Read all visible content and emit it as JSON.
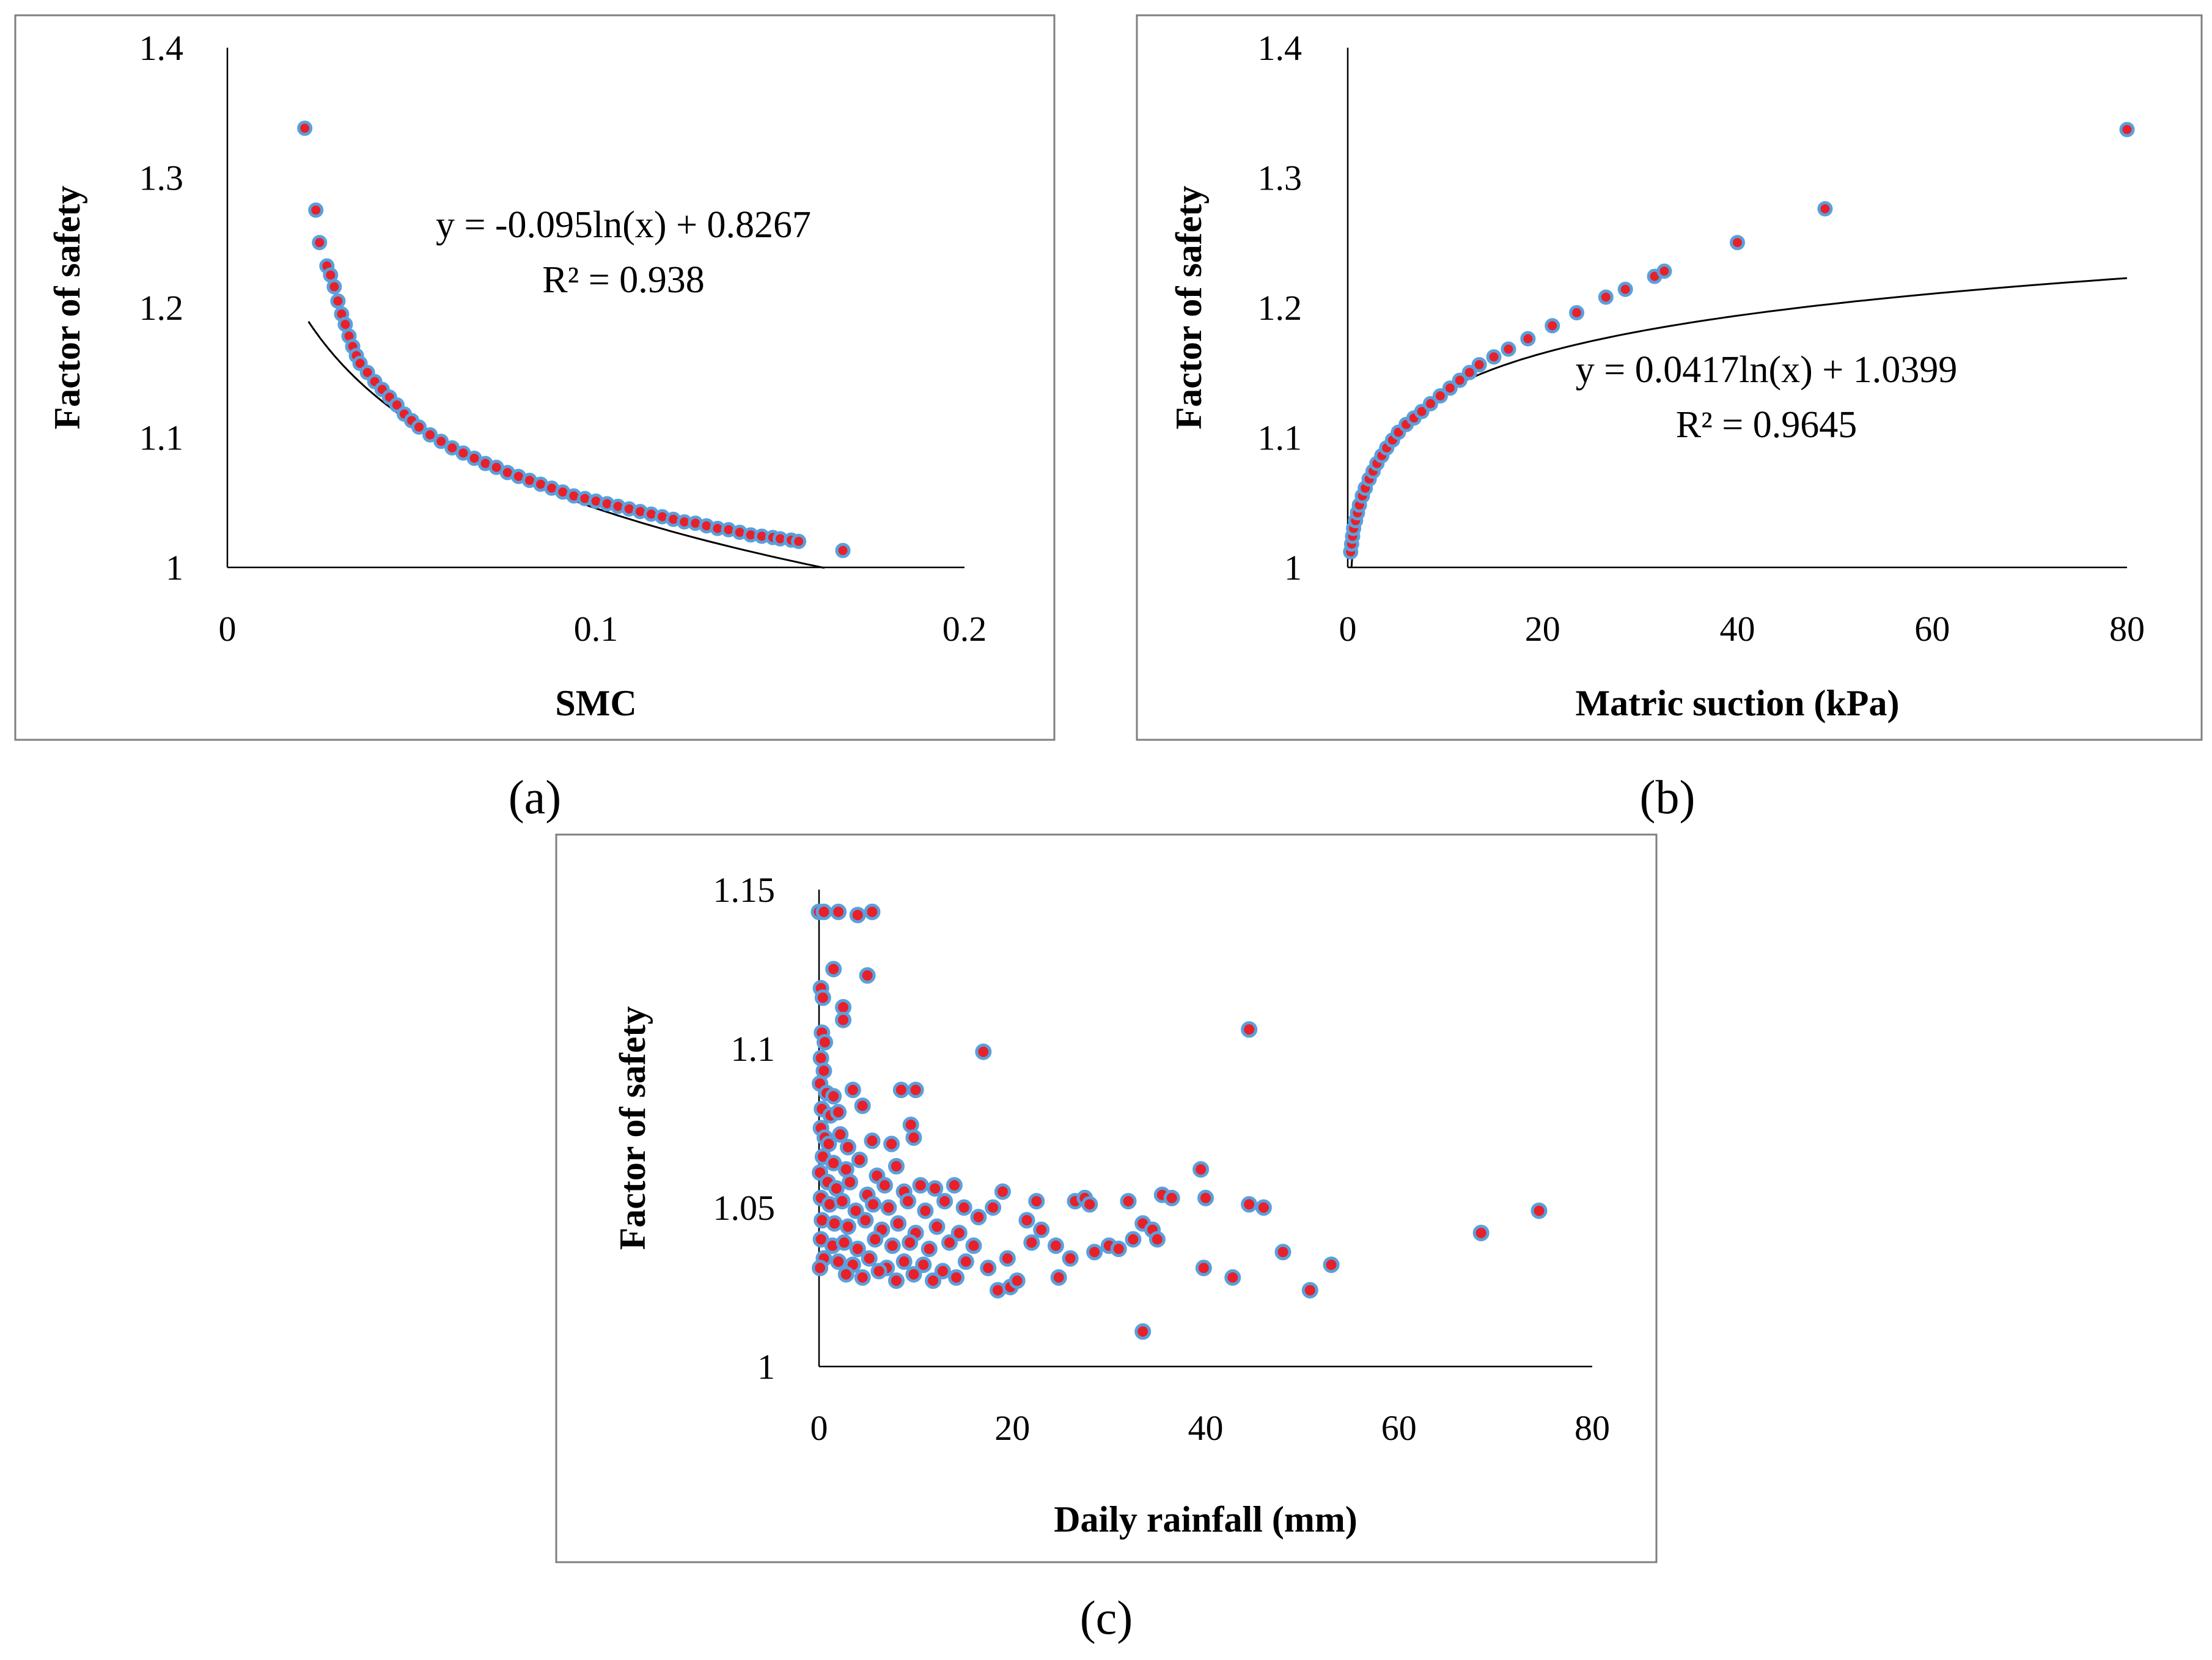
{
  "colors": {
    "marker_fill": "#e8202a",
    "marker_edge": "#5aa0dc",
    "trendline": "#000000",
    "frame": "#7f7f7f"
  },
  "chart_data": [
    {
      "panel_label": "(a)",
      "type": "scatter",
      "xlabel": "SMC",
      "ylabel": "Factor of safety",
      "xlim": [
        0,
        0.2
      ],
      "ylim": [
        1,
        1.4
      ],
      "xticks": [
        "0",
        "0.1",
        "0.2"
      ],
      "yticks": [
        "1",
        "1.1",
        "1.2",
        "1.3",
        "1.4"
      ],
      "trendline": {
        "type": "log",
        "a": -0.095,
        "b": 0.8267,
        "x_range": [
          0.022,
          0.162
        ]
      },
      "equation": "y = -0.095ln(x) + 0.8267",
      "r_squared": "R² = 0.938",
      "points": [
        [
          0.021,
          1.338
        ],
        [
          0.024,
          1.275
        ],
        [
          0.025,
          1.25
        ],
        [
          0.027,
          1.232
        ],
        [
          0.028,
          1.225
        ],
        [
          0.029,
          1.216
        ],
        [
          0.03,
          1.205
        ],
        [
          0.031,
          1.195
        ],
        [
          0.032,
          1.187
        ],
        [
          0.033,
          1.178
        ],
        [
          0.034,
          1.17
        ],
        [
          0.035,
          1.163
        ],
        [
          0.036,
          1.157
        ],
        [
          0.038,
          1.15
        ],
        [
          0.04,
          1.143
        ],
        [
          0.042,
          1.137
        ],
        [
          0.044,
          1.131
        ],
        [
          0.046,
          1.125
        ],
        [
          0.048,
          1.118
        ],
        [
          0.05,
          1.113
        ],
        [
          0.052,
          1.108
        ],
        [
          0.055,
          1.102
        ],
        [
          0.058,
          1.097
        ],
        [
          0.061,
          1.092
        ],
        [
          0.064,
          1.088
        ],
        [
          0.067,
          1.084
        ],
        [
          0.07,
          1.08
        ],
        [
          0.073,
          1.077
        ],
        [
          0.076,
          1.073
        ],
        [
          0.079,
          1.07
        ],
        [
          0.082,
          1.067
        ],
        [
          0.085,
          1.064
        ],
        [
          0.088,
          1.061
        ],
        [
          0.091,
          1.058
        ],
        [
          0.094,
          1.055
        ],
        [
          0.097,
          1.053
        ],
        [
          0.1,
          1.051
        ],
        [
          0.103,
          1.049
        ],
        [
          0.106,
          1.047
        ],
        [
          0.109,
          1.045
        ],
        [
          0.112,
          1.043
        ],
        [
          0.115,
          1.041
        ],
        [
          0.118,
          1.039
        ],
        [
          0.121,
          1.037
        ],
        [
          0.124,
          1.035
        ],
        [
          0.127,
          1.034
        ],
        [
          0.13,
          1.032
        ],
        [
          0.133,
          1.03
        ],
        [
          0.136,
          1.029
        ],
        [
          0.139,
          1.027
        ],
        [
          0.142,
          1.025
        ],
        [
          0.145,
          1.024
        ],
        [
          0.148,
          1.023
        ],
        [
          0.15,
          1.022
        ],
        [
          0.153,
          1.021
        ],
        [
          0.155,
          1.02
        ],
        [
          0.167,
          1.013
        ]
      ]
    },
    {
      "panel_label": "(b)",
      "type": "scatter",
      "xlabel": "Matric suction (kPa)",
      "ylabel": "Factor of safety",
      "xlim": [
        0,
        80
      ],
      "ylim": [
        1,
        1.4
      ],
      "xticks": [
        "0",
        "20",
        "40",
        "60",
        "80"
      ],
      "yticks": [
        "1",
        "1.1",
        "1.2",
        "1.3",
        "1.4"
      ],
      "trendline": {
        "type": "log",
        "a": 0.0417,
        "b": 1.0399,
        "x_range": [
          0.38,
          80
        ]
      },
      "equation": "y = 0.0417ln(x) + 1.0399",
      "r_squared": "R² = 0.9645",
      "points": [
        [
          0.3,
          1.012
        ],
        [
          0.4,
          1.018
        ],
        [
          0.5,
          1.024
        ],
        [
          0.6,
          1.03
        ],
        [
          0.8,
          1.036
        ],
        [
          1.0,
          1.042
        ],
        [
          1.2,
          1.048
        ],
        [
          1.5,
          1.055
        ],
        [
          1.8,
          1.061
        ],
        [
          2.2,
          1.068
        ],
        [
          2.6,
          1.074
        ],
        [
          3.0,
          1.08
        ],
        [
          3.5,
          1.086
        ],
        [
          4.0,
          1.092
        ],
        [
          4.6,
          1.098
        ],
        [
          5.2,
          1.104
        ],
        [
          6.0,
          1.11
        ],
        [
          6.8,
          1.115
        ],
        [
          7.6,
          1.12
        ],
        [
          8.5,
          1.126
        ],
        [
          9.5,
          1.132
        ],
        [
          10.5,
          1.138
        ],
        [
          11.5,
          1.144
        ],
        [
          12.5,
          1.15
        ],
        [
          13.5,
          1.156
        ],
        [
          15.0,
          1.162
        ],
        [
          16.5,
          1.168
        ],
        [
          18.5,
          1.176
        ],
        [
          21.0,
          1.186
        ],
        [
          23.5,
          1.196
        ],
        [
          26.5,
          1.208
        ],
        [
          28.5,
          1.214
        ],
        [
          31.5,
          1.224
        ],
        [
          32.5,
          1.228
        ],
        [
          40.0,
          1.25
        ],
        [
          49.0,
          1.276
        ],
        [
          80.0,
          1.337
        ]
      ]
    },
    {
      "panel_label": "(c)",
      "type": "scatter",
      "xlabel": "Daily rainfall (mm)",
      "ylabel": "Factor of safety",
      "xlim": [
        0,
        80
      ],
      "ylim": [
        1,
        1.15
      ],
      "xticks": [
        "0",
        "20",
        "40",
        "60",
        "80"
      ],
      "yticks": [
        "1",
        "1.05",
        "1.1",
        "1.15"
      ],
      "points": [
        [
          0,
          1.143
        ],
        [
          0.5,
          1.143
        ],
        [
          2,
          1.143
        ],
        [
          4,
          1.142
        ],
        [
          5.5,
          1.143
        ],
        [
          1.5,
          1.125
        ],
        [
          5,
          1.123
        ],
        [
          0.2,
          1.119
        ],
        [
          0.4,
          1.116
        ],
        [
          2.5,
          1.113
        ],
        [
          2.5,
          1.109
        ],
        [
          0.3,
          1.105
        ],
        [
          0.6,
          1.102
        ],
        [
          0.2,
          1.097
        ],
        [
          0.5,
          1.093
        ],
        [
          0.1,
          1.089
        ],
        [
          0.8,
          1.086
        ],
        [
          1.5,
          1.085
        ],
        [
          3.5,
          1.087
        ],
        [
          8.5,
          1.087
        ],
        [
          10,
          1.087
        ],
        [
          17,
          1.099
        ],
        [
          44.5,
          1.106
        ],
        [
          0.3,
          1.081
        ],
        [
          1.2,
          1.079
        ],
        [
          2.0,
          1.08
        ],
        [
          4.5,
          1.082
        ],
        [
          9.5,
          1.076
        ],
        [
          0.2,
          1.075
        ],
        [
          0.6,
          1.072
        ],
        [
          1.0,
          1.07
        ],
        [
          2.2,
          1.073
        ],
        [
          3.0,
          1.069
        ],
        [
          5.5,
          1.071
        ],
        [
          7.5,
          1.07
        ],
        [
          9.8,
          1.072
        ],
        [
          0.4,
          1.066
        ],
        [
          1.5,
          1.064
        ],
        [
          2.8,
          1.062
        ],
        [
          4.2,
          1.065
        ],
        [
          6.0,
          1.06
        ],
        [
          8.0,
          1.063
        ],
        [
          0.1,
          1.061
        ],
        [
          0.9,
          1.058
        ],
        [
          1.8,
          1.056
        ],
        [
          3.2,
          1.058
        ],
        [
          5.0,
          1.054
        ],
        [
          6.8,
          1.057
        ],
        [
          8.8,
          1.055
        ],
        [
          10.5,
          1.057
        ],
        [
          12.0,
          1.056
        ],
        [
          14.0,
          1.057
        ],
        [
          19.0,
          1.055
        ],
        [
          0.2,
          1.053
        ],
        [
          1.1,
          1.051
        ],
        [
          2.4,
          1.052
        ],
        [
          3.8,
          1.049
        ],
        [
          5.6,
          1.051
        ],
        [
          7.2,
          1.05
        ],
        [
          9.2,
          1.052
        ],
        [
          11.0,
          1.049
        ],
        [
          13.0,
          1.052
        ],
        [
          15.0,
          1.05
        ],
        [
          16.5,
          1.047
        ],
        [
          18.0,
          1.05
        ],
        [
          22.5,
          1.052
        ],
        [
          26.5,
          1.052
        ],
        [
          27.5,
          1.053
        ],
        [
          28.0,
          1.051
        ],
        [
          32.0,
          1.052
        ],
        [
          35.5,
          1.054
        ],
        [
          36.5,
          1.053
        ],
        [
          39.5,
          1.062
        ],
        [
          40.0,
          1.053
        ],
        [
          44.5,
          1.051
        ],
        [
          46.0,
          1.05
        ],
        [
          0.3,
          1.046
        ],
        [
          1.6,
          1.045
        ],
        [
          3.0,
          1.044
        ],
        [
          4.8,
          1.046
        ],
        [
          6.5,
          1.043
        ],
        [
          8.2,
          1.045
        ],
        [
          10.0,
          1.042
        ],
        [
          12.2,
          1.044
        ],
        [
          14.5,
          1.042
        ],
        [
          21.5,
          1.046
        ],
        [
          23.0,
          1.043
        ],
        [
          33.5,
          1.045
        ],
        [
          0.2,
          1.04
        ],
        [
          1.4,
          1.038
        ],
        [
          2.6,
          1.039
        ],
        [
          4.0,
          1.037
        ],
        [
          5.8,
          1.04
        ],
        [
          7.6,
          1.038
        ],
        [
          9.4,
          1.039
        ],
        [
          11.4,
          1.037
        ],
        [
          13.5,
          1.039
        ],
        [
          16.0,
          1.038
        ],
        [
          22.0,
          1.039
        ],
        [
          24.5,
          1.038
        ],
        [
          30.0,
          1.038
        ],
        [
          32.5,
          1.04
        ],
        [
          34.5,
          1.043
        ],
        [
          35.0,
          1.04
        ],
        [
          0.5,
          1.034
        ],
        [
          2.0,
          1.033
        ],
        [
          3.5,
          1.032
        ],
        [
          5.2,
          1.034
        ],
        [
          7.0,
          1.031
        ],
        [
          8.8,
          1.033
        ],
        [
          10.8,
          1.032
        ],
        [
          12.8,
          1.03
        ],
        [
          15.2,
          1.033
        ],
        [
          17.5,
          1.031
        ],
        [
          19.5,
          1.034
        ],
        [
          26.0,
          1.034
        ],
        [
          28.5,
          1.036
        ],
        [
          31.0,
          1.037
        ],
        [
          48.0,
          1.036
        ],
        [
          68.5,
          1.042
        ],
        [
          74.5,
          1.049
        ],
        [
          0.1,
          1.031
        ],
        [
          2.8,
          1.029
        ],
        [
          4.5,
          1.028
        ],
        [
          6.2,
          1.03
        ],
        [
          8.0,
          1.027
        ],
        [
          9.8,
          1.029
        ],
        [
          11.8,
          1.027
        ],
        [
          14.2,
          1.028
        ],
        [
          18.5,
          1.024
        ],
        [
          19.8,
          1.025
        ],
        [
          20.5,
          1.027
        ],
        [
          24.8,
          1.028
        ],
        [
          39.8,
          1.031
        ],
        [
          42.8,
          1.028
        ],
        [
          50.8,
          1.024
        ],
        [
          53.0,
          1.032
        ],
        [
          33.5,
          1.011
        ]
      ]
    }
  ]
}
